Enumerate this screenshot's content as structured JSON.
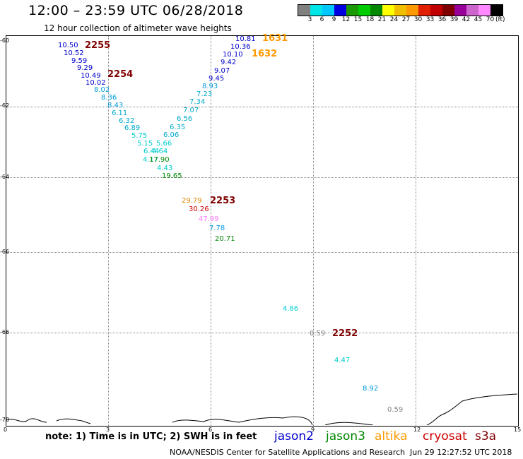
{
  "header": {
    "title": "12:00 – 23:59 UTC 06/28/2018",
    "subtitle": "12 hour collection of altimeter wave heights"
  },
  "colorbar": {
    "colors": [
      "#808080",
      "#00e5e5",
      "#00c8ff",
      "#0000e0",
      "#1a9900",
      "#00cc00",
      "#008800",
      "#ffff00",
      "#f0c000",
      "#ff9900",
      "#e02000",
      "#c00000",
      "#800000",
      "#990099",
      "#cc66cc",
      "#ff88ff",
      "#000000"
    ],
    "labels": [
      "3",
      "6",
      "9",
      "12",
      "15",
      "18",
      "21",
      "24",
      "27",
      "30",
      "33",
      "36",
      "39",
      "42",
      "45",
      "70"
    ],
    "unit": "(ft)"
  },
  "map": {
    "lat_labels": [
      "-60",
      "-62",
      "-64",
      "-66",
      "-68",
      "-70"
    ],
    "lon_labels": [
      "0",
      "3",
      "6",
      "9",
      "12",
      "15"
    ]
  },
  "measurements": [
    {
      "text": "10.50",
      "color": "#0000cc"
    },
    {
      "text": "10.52",
      "color": "#0000cc"
    },
    {
      "text": "9.59",
      "color": "#0000cc"
    },
    {
      "text": "9.29",
      "color": "#0000cc"
    },
    {
      "text": "10.49",
      "color": "#0000cc"
    },
    {
      "text": "10.02",
      "color": "#0000cc"
    },
    {
      "text": "8.02",
      "color": "#0099dd"
    },
    {
      "text": "8.36",
      "color": "#0099dd"
    },
    {
      "text": "8.43",
      "color": "#0099dd"
    },
    {
      "text": "6.11",
      "color": "#00aacc"
    },
    {
      "text": "6.32",
      "color": "#00aacc"
    },
    {
      "text": "6.89",
      "color": "#00aacc"
    },
    {
      "text": "5.75",
      "color": "#00cccc"
    },
    {
      "text": "5.15",
      "color": "#00cccc"
    },
    {
      "text": "6.44",
      "color": "#00cccc"
    },
    {
      "text": "4.17",
      "color": "#00cccc"
    },
    {
      "text": "5.66",
      "color": "#00cccc"
    },
    {
      "text": "4.64",
      "color": "#00cccc"
    },
    {
      "text": "17.90",
      "color": "#008800"
    },
    {
      "text": "4.43",
      "color": "#00cccc"
    },
    {
      "text": "19.65",
      "color": "#008800"
    },
    {
      "text": "6.06",
      "color": "#00aacc"
    },
    {
      "text": "6.35",
      "color": "#00aacc"
    },
    {
      "text": "6.56",
      "color": "#00aacc"
    },
    {
      "text": "7.07",
      "color": "#00aacc"
    },
    {
      "text": "7.34",
      "color": "#00aacc"
    },
    {
      "text": "7.23",
      "color": "#00aacc"
    },
    {
      "text": "8.93",
      "color": "#0099dd"
    },
    {
      "text": "9.45",
      "color": "#0000cc"
    },
    {
      "text": "9.07",
      "color": "#0000cc"
    },
    {
      "text": "9.42",
      "color": "#0000cc"
    },
    {
      "text": "10.10",
      "color": "#0000cc"
    },
    {
      "text": "10.36",
      "color": "#0000cc"
    },
    {
      "text": "10.81",
      "color": "#0000cc"
    },
    {
      "text": "29.79",
      "color": "#e08800"
    },
    {
      "text": "30.26",
      "color": "#cc0000"
    },
    {
      "text": "47.99",
      "color": "#ff77ff"
    },
    {
      "text": "7.78",
      "color": "#0099dd"
    },
    {
      "text": "20.71",
      "color": "#008800"
    },
    {
      "text": "4.86",
      "color": "#00cccc"
    },
    {
      "text": "0.59",
      "color": "#808080"
    },
    {
      "text": "4.47",
      "color": "#00cccc"
    },
    {
      "text": "8.92",
      "color": "#0099dd"
    },
    {
      "text": "0.59",
      "color": "#808080"
    }
  ],
  "pass_tags": [
    {
      "text": "2255",
      "color": "#800000"
    },
    {
      "text": "2254",
      "color": "#800000"
    },
    {
      "text": "1631",
      "color": "#ff9900"
    },
    {
      "text": "1632",
      "color": "#ff9900"
    },
    {
      "text": "2253",
      "color": "#800000"
    },
    {
      "text": "2252",
      "color": "#800000"
    }
  ],
  "note": "note: 1) Time is in UTC; 2) SWH is in feet",
  "satellites": [
    {
      "name": "jason2",
      "color": "#0000cc"
    },
    {
      "name": "jason3",
      "color": "#008800"
    },
    {
      "name": "altika",
      "color": "#ff9900"
    },
    {
      "name": "cryosat",
      "color": "#cc0000"
    },
    {
      "name": "s3a",
      "color": "#800000"
    }
  ],
  "footer": {
    "credit": "NOAA/NESDIS Center for Satellite Applications and Research",
    "timestamp": "Jun 29 12:27:52 UTC 2018"
  }
}
